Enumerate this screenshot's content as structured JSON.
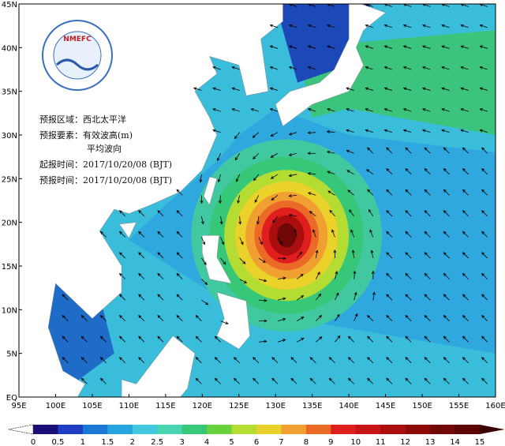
{
  "logo": "NMEFC",
  "info": {
    "region": "预报区域：西北太平洋",
    "element": "预报要素：有效波高(m)",
    "element2": "平均波向",
    "issue_time": "起报时间：2017/10/20/08 (BJT)",
    "forecast_time": "预报时间：2017/10/20/08 (BJT)"
  },
  "axes": {
    "lat_labels": [
      "45N",
      "40N",
      "35N",
      "30N",
      "25N",
      "20N",
      "15N",
      "10N",
      "5N",
      "EQ"
    ],
    "lon_labels": [
      "95E",
      "100E",
      "105E",
      "110E",
      "115E",
      "120E",
      "125E",
      "130E",
      "135E",
      "140E",
      "145E",
      "150E",
      "155E",
      "160E"
    ]
  },
  "colorbar": {
    "levels": [
      0,
      0.5,
      1,
      1.5,
      2,
      2.5,
      3,
      4,
      5,
      6,
      7,
      8,
      9,
      10,
      11,
      12,
      13,
      14,
      15
    ],
    "colors": [
      "#ffffff",
      "#1a0e78",
      "#1f3ec4",
      "#1c78d6",
      "#26a4e0",
      "#42c8dc",
      "#4ad4b0",
      "#36c878",
      "#6ad23c",
      "#b4dc32",
      "#ead22a",
      "#f0a030",
      "#ec6a28",
      "#e01e1e",
      "#c81414",
      "#aa0e0e",
      "#8c0a0a",
      "#700808",
      "#5a0404",
      "#3c0000"
    ]
  }
}
